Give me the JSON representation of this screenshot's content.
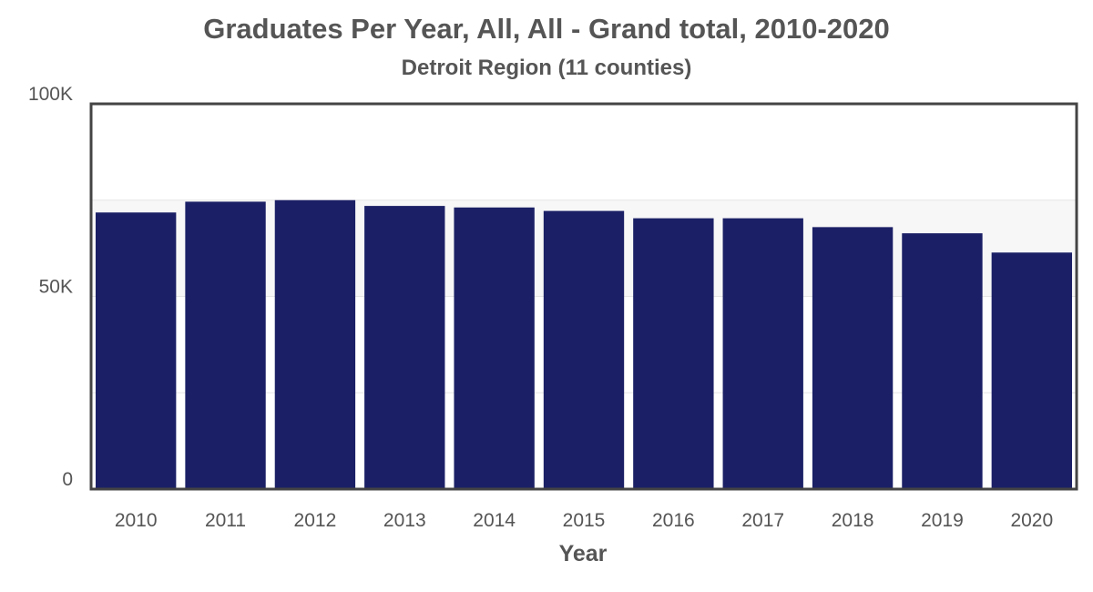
{
  "chart_data": {
    "type": "bar",
    "title": "Graduates Per Year, All, All - Grand total, 2010-2020",
    "subtitle": "Detroit Region (11 counties)",
    "xlabel": "Year",
    "ylabel": "",
    "categories": [
      "2010",
      "2011",
      "2012",
      "2013",
      "2014",
      "2015",
      "2016",
      "2017",
      "2018",
      "2019",
      "2020"
    ],
    "values": [
      71800,
      74600,
      75000,
      73500,
      73100,
      72200,
      70300,
      70300,
      68000,
      66400,
      61400
    ],
    "ylim": [
      0,
      100000
    ],
    "yticks": [
      {
        "value": 0,
        "label": "0"
      },
      {
        "value": 50000,
        "label": "50K"
      },
      {
        "value": 100000,
        "label": "100K"
      }
    ],
    "grid": true,
    "legend": "none",
    "colors": {
      "bar": "#1b2066",
      "frame": "#444444",
      "gridline": "#e6e6e6",
      "band": "#f7f7f7",
      "text": "#555555"
    }
  }
}
